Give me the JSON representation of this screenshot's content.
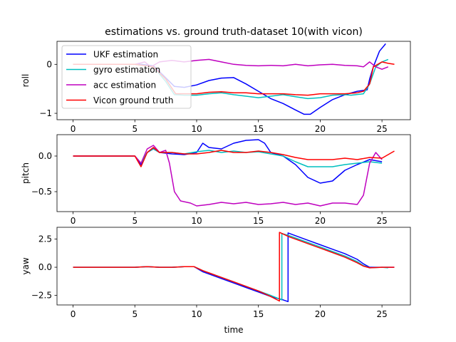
{
  "chart_data": {
    "type": "line",
    "title": "estimations vs. ground truth-dataset 10(with vicon)",
    "xlabel": "time",
    "xlim": [
      -1.3,
      27.3
    ],
    "xticks": [
      0,
      5,
      10,
      15,
      20,
      25
    ],
    "xtick_labels": [
      "0",
      "5",
      "10",
      "15",
      "20",
      "25"
    ],
    "legend": {
      "placement": "upper-left of top panel",
      "entries": [
        {
          "label": "UKF estimation",
          "color": "#0000ff"
        },
        {
          "label": "gyro estimation",
          "color": "#00bfbf"
        },
        {
          "label": "acc estimation",
          "color": "#bf00bf"
        },
        {
          "label": "Vicon ground truth",
          "color": "#ff0000"
        }
      ]
    },
    "panels": [
      {
        "ylabel": "roll",
        "ylim": [
          -1.13,
          0.47
        ],
        "yticks": [
          -1,
          0
        ],
        "ytick_labels": [
          "−1",
          "0"
        ],
        "series": [
          {
            "name": "UKF estimation",
            "color": "#0000ff",
            "x": [
              0,
              2,
              4,
              5.5,
              6.5,
              7.2,
              8.2,
              9,
              10,
              11,
              12,
              13,
              14,
              15,
              16,
              17,
              18,
              18.7,
              19.2,
              20,
              21,
              22,
              23,
              23.8,
              24,
              24.3,
              24.8,
              25.3
            ],
            "y": [
              0,
              0,
              0,
              0,
              -0.03,
              -0.2,
              -0.45,
              -0.47,
              -0.42,
              -0.33,
              -0.28,
              -0.27,
              -0.4,
              -0.55,
              -0.7,
              -0.8,
              -0.93,
              -1.02,
              -1.02,
              -0.88,
              -0.72,
              -0.62,
              -0.55,
              -0.52,
              -0.3,
              -0.05,
              0.27,
              0.42
            ]
          },
          {
            "name": "gyro estimation",
            "color": "#00bfbf",
            "x": [
              0,
              5,
              6.5,
              7.5,
              8.2,
              9,
              10,
              11,
              12,
              13,
              14,
              15,
              16,
              17,
              18,
              19,
              20,
              21,
              22,
              22.5,
              23.5,
              24,
              24.5,
              25,
              25.5
            ],
            "y": [
              0,
              0,
              -0.05,
              -0.35,
              -0.62,
              -0.63,
              -0.63,
              -0.6,
              -0.58,
              -0.62,
              -0.65,
              -0.68,
              -0.65,
              -0.62,
              -0.66,
              -0.7,
              -0.68,
              -0.63,
              -0.62,
              -0.63,
              -0.6,
              -0.4,
              -0.05,
              0.05,
              0.1
            ]
          },
          {
            "name": "acc estimation",
            "color": "#bf00bf",
            "x": [
              0,
              5,
              5.8,
              6.3,
              7,
              8,
              9,
              10,
              11,
              12,
              13,
              14,
              15,
              16,
              17,
              18,
              19,
              20,
              21,
              22,
              23,
              23.5,
              24,
              24.5,
              25,
              25.5
            ],
            "y": [
              0,
              0,
              0.05,
              -0.05,
              0.05,
              0.08,
              0.05,
              0.08,
              0.1,
              0.05,
              0,
              -0.02,
              -0.03,
              -0.02,
              -0.03,
              0,
              -0.03,
              -0.01,
              0,
              -0.02,
              -0.03,
              -0.05,
              0.05,
              -0.05,
              -0.1,
              -0.05
            ]
          },
          {
            "name": "Vicon ground truth",
            "color": "#ff0000",
            "x": [
              0,
              5,
              6.5,
              7.5,
              8.3,
              9,
              10,
              11,
              12,
              13,
              14,
              15,
              16,
              17,
              18,
              19,
              20,
              21,
              22,
              23,
              23.5,
              24,
              24.3,
              25,
              25.5,
              26
            ],
            "y": [
              0,
              0,
              -0.05,
              -0.3,
              -0.6,
              -0.6,
              -0.6,
              -0.57,
              -0.56,
              -0.58,
              -0.58,
              -0.6,
              -0.6,
              -0.6,
              -0.62,
              -0.63,
              -0.6,
              -0.6,
              -0.6,
              -0.58,
              -0.55,
              -0.4,
              -0.05,
              0.05,
              0.02,
              0
            ]
          }
        ]
      },
      {
        "ylabel": "pitch",
        "ylim": [
          -0.78,
          0.3
        ],
        "yticks": [
          -0.5,
          0
        ],
        "ytick_labels": [
          "−0.5",
          "0.0"
        ],
        "series": [
          {
            "name": "UKF estimation",
            "color": "#0000ff",
            "x": [
              0,
              5,
              5.5,
              6,
              6.5,
              7,
              8,
              9,
              10,
              10.5,
              11,
              12,
              13,
              14,
              15,
              15.5,
              16,
              17,
              18,
              19,
              20,
              21,
              22,
              23,
              24,
              25
            ],
            "y": [
              0,
              0,
              -0.12,
              0.05,
              0.1,
              0.05,
              0.03,
              0.02,
              0.05,
              0.18,
              0.12,
              0.1,
              0.18,
              0.22,
              0.23,
              0.18,
              0.05,
              0,
              -0.12,
              -0.3,
              -0.38,
              -0.35,
              -0.2,
              -0.12,
              -0.05,
              -0.08
            ]
          },
          {
            "name": "gyro estimation",
            "color": "#00bfbf",
            "x": [
              0,
              5,
              5.5,
              6,
              6.5,
              7,
              8,
              9,
              10,
              11,
              12,
              13,
              14,
              15,
              16,
              17,
              18,
              19,
              20,
              21,
              22,
              23,
              24,
              25
            ],
            "y": [
              0,
              0,
              -0.1,
              0.05,
              0.1,
              0.05,
              0.05,
              0.03,
              0.06,
              0.08,
              0.05,
              0.07,
              0.05,
              0.06,
              0.03,
              0,
              -0.08,
              -0.15,
              -0.15,
              -0.15,
              -0.12,
              -0.1,
              -0.08,
              -0.1
            ]
          },
          {
            "name": "acc estimation",
            "color": "#bf00bf",
            "x": [
              0,
              5,
              5.5,
              6,
              6.5,
              7,
              7.5,
              7.8,
              8.2,
              8.7,
              9.5,
              10,
              11,
              12,
              13,
              14,
              15,
              16,
              17,
              18,
              19,
              20,
              21,
              22,
              23,
              23.5,
              24,
              24.5,
              25
            ],
            "y": [
              0,
              0,
              -0.1,
              0.1,
              0.15,
              0.05,
              0.08,
              -0.1,
              -0.5,
              -0.63,
              -0.66,
              -0.7,
              -0.68,
              -0.65,
              -0.67,
              -0.65,
              -0.68,
              -0.67,
              -0.65,
              -0.68,
              -0.66,
              -0.7,
              -0.66,
              -0.66,
              -0.68,
              -0.55,
              -0.1,
              0.05,
              -0.05
            ]
          },
          {
            "name": "Vicon ground truth",
            "color": "#ff0000",
            "x": [
              0,
              5,
              5.5,
              6,
              6.5,
              7,
              8,
              9,
              10,
              11,
              12,
              13,
              14,
              15,
              16,
              17,
              18,
              19,
              20,
              21,
              22,
              23,
              24,
              25,
              25.5,
              26
            ],
            "y": [
              0,
              0,
              -0.15,
              0.05,
              0.12,
              0.05,
              0.05,
              0.03,
              0.03,
              0.05,
              0.08,
              0.05,
              0.05,
              0.07,
              0.05,
              0.02,
              -0.02,
              -0.05,
              -0.05,
              -0.05,
              -0.03,
              -0.05,
              -0.02,
              -0.03,
              0.02,
              0.07
            ]
          }
        ]
      },
      {
        "ylabel": "yaw",
        "ylim": [
          -3.35,
          3.55
        ],
        "yticks": [
          -2.5,
          0,
          2.5
        ],
        "ytick_labels": [
          "−2.5",
          "0.0",
          "2.5"
        ],
        "series": [
          {
            "name": "UKF estimation",
            "color": "#0000ff",
            "x": [
              0,
              5,
              6,
              7,
              8,
              9,
              9.8,
              10.5,
              11,
              12,
              13,
              14,
              15,
              16,
              17,
              17.4,
              17.4,
              18,
              19,
              20,
              21,
              22,
              23,
              23.5,
              24,
              25,
              26
            ],
            "y": [
              0,
              0,
              0.05,
              0,
              0,
              0.05,
              0.05,
              -0.4,
              -0.6,
              -1.0,
              -1.4,
              -1.8,
              -2.2,
              -2.6,
              -2.9,
              -3.05,
              3.05,
              2.8,
              2.4,
              2.0,
              1.6,
              1.2,
              0.7,
              0.3,
              0,
              0,
              0
            ]
          },
          {
            "name": "gyro estimation",
            "color": "#00bfbf",
            "x": [
              0,
              5,
              6,
              7,
              8,
              9,
              9.8,
              10.5,
              11,
              12,
              13,
              14,
              15,
              16,
              16.9,
              16.9,
              17.5,
              18,
              19,
              20,
              21,
              22,
              23,
              23.5,
              24,
              25,
              25.5
            ],
            "y": [
              0,
              0,
              0.05,
              0,
              0,
              0.05,
              0.05,
              -0.3,
              -0.5,
              -0.9,
              -1.3,
              -1.7,
              -2.1,
              -2.5,
              -2.9,
              3.0,
              2.8,
              2.6,
              2.2,
              1.8,
              1.4,
              1.0,
              0.5,
              0.15,
              -0.05,
              0,
              -0.05
            ]
          },
          {
            "name": "Vicon ground truth",
            "color": "#ff0000",
            "x": [
              0,
              5,
              6,
              7,
              8,
              9,
              9.8,
              10.5,
              11,
              12,
              13,
              14,
              15,
              16,
              16.7,
              16.7,
              17.5,
              18,
              19,
              20,
              21,
              22,
              23,
              23.5,
              24,
              25,
              26
            ],
            "y": [
              0,
              0,
              0.05,
              0,
              0,
              0.05,
              0.05,
              -0.3,
              -0.5,
              -0.9,
              -1.3,
              -1.7,
              -2.1,
              -2.6,
              -3.0,
              3.1,
              2.7,
              2.5,
              2.1,
              1.7,
              1.3,
              0.9,
              0.4,
              0.1,
              -0.05,
              0,
              0
            ]
          }
        ]
      }
    ]
  }
}
